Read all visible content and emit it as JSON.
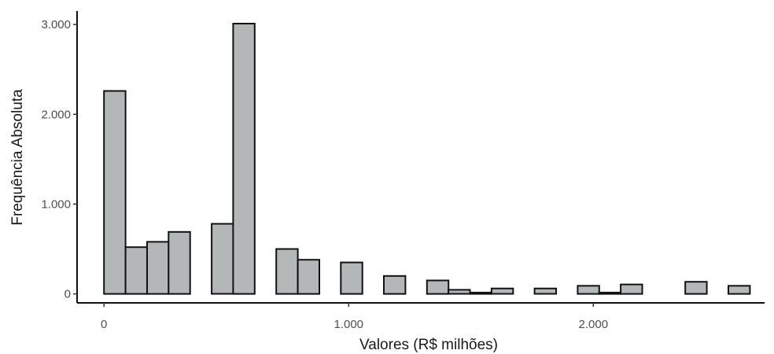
{
  "chart_data": {
    "type": "bar",
    "title": "",
    "xlabel": "Valores (R$ milhões)",
    "ylabel": "Frequência Absoluta",
    "xlim": [
      -110,
      2700
    ],
    "ylim": [
      -100,
      3150
    ],
    "x_ticks": [
      {
        "value": 0,
        "label": "0"
      },
      {
        "value": 1000,
        "label": "1.000"
      },
      {
        "value": 2000,
        "label": "2.000"
      }
    ],
    "y_ticks": [
      {
        "value": 0,
        "label": "0"
      },
      {
        "value": 1000,
        "label": "1.000"
      },
      {
        "value": 2000,
        "label": "2.000"
      },
      {
        "value": 3000,
        "label": "3.000"
      }
    ],
    "bin_width": 88,
    "bins": [
      {
        "x": 0,
        "count": 2260
      },
      {
        "x": 88,
        "count": 520
      },
      {
        "x": 176,
        "count": 580
      },
      {
        "x": 264,
        "count": 690
      },
      {
        "x": 440,
        "count": 780
      },
      {
        "x": 528,
        "count": 3010
      },
      {
        "x": 704,
        "count": 500
      },
      {
        "x": 792,
        "count": 380
      },
      {
        "x": 968,
        "count": 350
      },
      {
        "x": 1144,
        "count": 200
      },
      {
        "x": 1320,
        "count": 150
      },
      {
        "x": 1408,
        "count": 45
      },
      {
        "x": 1496,
        "count": 15
      },
      {
        "x": 1584,
        "count": 60
      },
      {
        "x": 1760,
        "count": 60
      },
      {
        "x": 1936,
        "count": 90
      },
      {
        "x": 2024,
        "count": 15
      },
      {
        "x": 2112,
        "count": 105
      },
      {
        "x": 2376,
        "count": 135
      },
      {
        "x": 2552,
        "count": 90
      }
    ],
    "grid": false,
    "legend": "none",
    "colors": {
      "bar_fill": "#b4b7b8",
      "bar_stroke": "#111111"
    }
  }
}
